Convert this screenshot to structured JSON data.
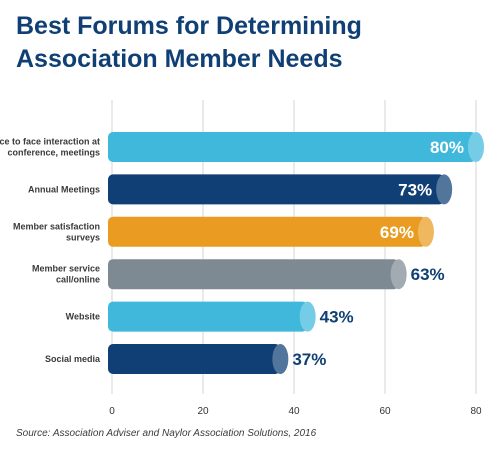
{
  "title_line1": "Best Forums for Determining",
  "title_line2": "Association Member Needs",
  "source": "Source: Association Adviser and Naylor Association Solutions, 2016",
  "chart_data": {
    "type": "bar",
    "orientation": "horizontal",
    "title": "Best Forums for Determining Association Member Needs",
    "categories": [
      [
        "Face to face interaction at",
        "conference, meetings"
      ],
      [
        "Annual Meetings"
      ],
      [
        "Member satisfaction",
        "surveys"
      ],
      [
        "Member service",
        "call/online"
      ],
      [
        "Website"
      ],
      [
        "Social media"
      ]
    ],
    "values": [
      80,
      73,
      69,
      63,
      43,
      37
    ],
    "value_labels": [
      "80%",
      "73%",
      "69%",
      "63%",
      "43%",
      "37%"
    ],
    "xlim": [
      0,
      80
    ],
    "xticks": [
      0,
      20,
      40,
      60,
      80
    ],
    "colors": [
      "#3fb8dc",
      "#0f3f74",
      "#e99c21",
      "#7e8a93",
      "#3fb8dc",
      "#0f3f74"
    ],
    "label_color": "#0f3f74",
    "grid": true
  }
}
